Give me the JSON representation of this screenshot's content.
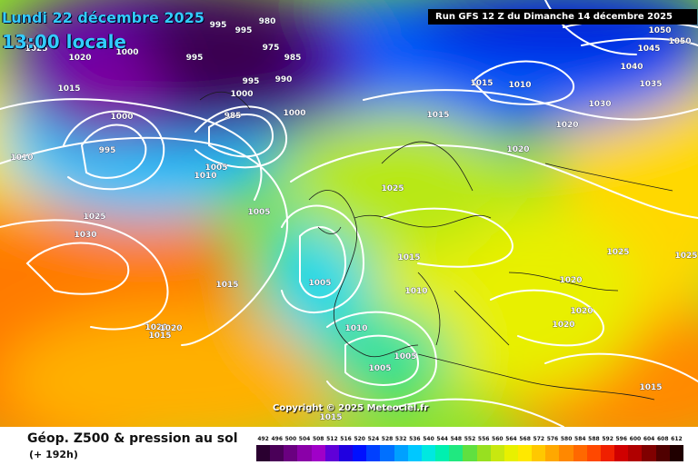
{
  "header": {
    "date_line": "Lundi 22 décembre 2025",
    "time_line": "13:00 locale",
    "run_info": "Run GFS 12 Z du Dimanche 14 décembre 2025"
  },
  "map": {
    "copyright": "Copyright © 2025 Meteociel.fr",
    "pressure_labels": [
      "995",
      "980",
      "995",
      "975",
      "985",
      "995",
      "990",
      "1000",
      "985",
      "1000",
      "995",
      "1000",
      "1025",
      "1020",
      "1015",
      "1000",
      "995",
      "1010",
      "1005",
      "1010",
      "1005",
      "1025",
      "1030",
      "1015",
      "1005",
      "1015",
      "1020",
      "1015",
      "1010",
      "1010",
      "1005",
      "1005",
      "1020",
      "1015",
      "1015",
      "1010",
      "1020",
      "1025",
      "1030",
      "1035",
      "1040",
      "1045",
      "1050",
      "1050",
      "1020",
      "1025",
      "1020",
      "1020",
      "1015",
      "1020",
      "1025",
      "1015"
    ]
  },
  "footer": {
    "title": "Géop. Z500 & pression au sol",
    "subtitle": "(+ 192h)"
  },
  "legend": {
    "labels": [
      "492",
      "496",
      "500",
      "504",
      "508",
      "512",
      "516",
      "520",
      "524",
      "528",
      "532",
      "536",
      "540",
      "544",
      "548",
      "552",
      "556",
      "560",
      "564",
      "568",
      "572",
      "576",
      "580",
      "584",
      "588",
      "592",
      "596",
      "600",
      "604",
      "608",
      "612"
    ],
    "colors": [
      "#2a0030",
      "#4a0058",
      "#6a0080",
      "#8a00a8",
      "#a000c8",
      "#6000d8",
      "#2000e0",
      "#0010ff",
      "#0040ff",
      "#0070ff",
      "#00a0ff",
      "#00c8ff",
      "#00e8e0",
      "#00f0b0",
      "#20e880",
      "#60e040",
      "#98e020",
      "#c8e810",
      "#e8f000",
      "#ffe800",
      "#ffc800",
      "#ffa800",
      "#ff8800",
      "#ff6800",
      "#ff4800",
      "#f02000",
      "#d00000",
      "#b00000",
      "#800000",
      "#500000",
      "#200000"
    ]
  }
}
